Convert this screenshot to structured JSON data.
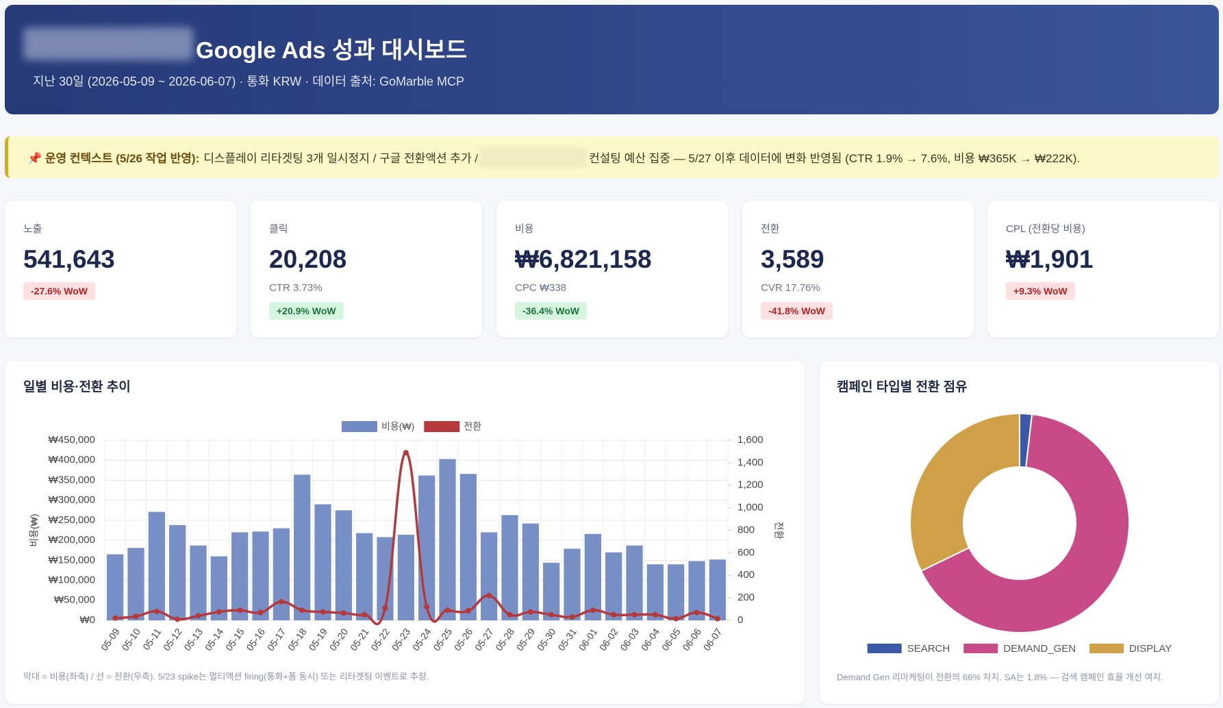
{
  "header": {
    "title": "Google Ads 성과 대시보드",
    "subtitle": "지난 30일 (2026-05-09 ~ 2026-06-07) · 통화 KRW · 데이터 출처: GoMarble MCP"
  },
  "notice": {
    "label": "📌 운영 컨텍스트 (5/26 작업 반영):",
    "text_before": "디스플레이 리타겟팅 3개 일시정지 / 구글 전환액션 추가 /",
    "text_after": "컨설팅 예산 집중 — 5/27 이후 데이터에 변화 반영됨 (CTR 1.9% → 7.6%, 비용 ₩365K → ₩222K)."
  },
  "kpis": [
    {
      "label": "노출",
      "value": "541,643",
      "badge": "-27.6% WoW"
    },
    {
      "label": "클릭",
      "value": "20,208",
      "sub": "CTR 3.73%",
      "badge": "+20.9% WoW"
    },
    {
      "label": "비용",
      "value": "₩6,821,158",
      "sub": "CPC ₩338",
      "badge": "-36.4% WoW"
    },
    {
      "label": "전환",
      "value": "3,589",
      "sub": "CVR 17.76%",
      "badge": "-41.8% WoW"
    },
    {
      "label": "CPL (전환당 비용)",
      "value": "₩1,901",
      "badge": "+9.3% WoW"
    }
  ],
  "chart_data": [
    {
      "type": "bar",
      "title": "일별 비용·전환 추이",
      "note": "막대 = 비용(좌축) / 선 = 전환(우축). 5/23 spike는 멀티액션 firing(통화+폼 동시) 또는 리타겟팅 이벤트로 추정.",
      "categories": [
        "05-09",
        "05-10",
        "05-11",
        "05-12",
        "05-13",
        "05-14",
        "05-15",
        "05-16",
        "05-17",
        "05-18",
        "05-19",
        "05-20",
        "05-21",
        "05-22",
        "05-23",
        "05-24",
        "05-25",
        "05-26",
        "05-27",
        "05-28",
        "05-29",
        "05-30",
        "05-31",
        "06-01",
        "06-02",
        "06-03",
        "06-04",
        "06-05",
        "06-06",
        "06-07"
      ],
      "series": [
        {
          "name": "비용(₩)",
          "type": "bar",
          "color": "#7189c3",
          "values": [
            165000,
            181000,
            271000,
            238000,
            187000,
            160000,
            220000,
            222000,
            230000,
            364000,
            290000,
            275000,
            218000,
            208000,
            214000,
            362000,
            403000,
            366000,
            220000,
            263000,
            242000,
            144000,
            179000,
            216000,
            170000,
            187000,
            140000,
            140000,
            148000,
            152000
          ]
        },
        {
          "name": "전환",
          "type": "line",
          "color": "#b5393a",
          "axis": "y2",
          "values": [
            20,
            35,
            80,
            10,
            40,
            75,
            90,
            70,
            165,
            90,
            75,
            65,
            50,
            110,
            1490,
            120,
            90,
            85,
            220,
            50,
            75,
            50,
            30,
            90,
            50,
            50,
            50,
            15,
            70,
            15
          ]
        }
      ],
      "ylabel": "비용(₩)",
      "y2label": "전환",
      "ylim": [
        0,
        450000
      ],
      "yticks": [
        {
          "value": 0,
          "label": "₩0"
        },
        {
          "value": 50000,
          "label": "₩50,000"
        },
        {
          "value": 100000,
          "label": "₩100,000"
        },
        {
          "value": 150000,
          "label": "₩150,000"
        },
        {
          "value": 200000,
          "label": "₩200,000"
        },
        {
          "value": 250000,
          "label": "₩250,000"
        },
        {
          "value": 300000,
          "label": "₩300,000"
        },
        {
          "value": 350000,
          "label": "₩350,000"
        },
        {
          "value": 400000,
          "label": "₩400,000"
        },
        {
          "value": 450000,
          "label": "₩450,000"
        }
      ],
      "y2lim": [
        0,
        1600
      ],
      "y2ticks": [
        0,
        200,
        400,
        600,
        800,
        {
          "value": 1000,
          "label": "1,000"
        },
        {
          "value": 1200,
          "label": "1,200"
        },
        {
          "value": 1400,
          "label": "1,400"
        },
        {
          "value": 1600,
          "label": "1,600"
        }
      ],
      "grid": true,
      "legend": "top"
    },
    {
      "type": "doughnut",
      "title": "캠페인 타입별 전환 점유",
      "note": "Demand Gen 리마케팅이 전환의 66% 차지. SA는 1.8% — 검색 캠페인 효율 개선 여지.",
      "categories": [
        "SEARCH",
        "DEMAND_GEN",
        "DISPLAY"
      ],
      "values": [
        1.8,
        66,
        32.2
      ],
      "colors": [
        "#3b5aa6",
        "#c84b87",
        "#cfa046"
      ],
      "legend": "bottom"
    }
  ]
}
